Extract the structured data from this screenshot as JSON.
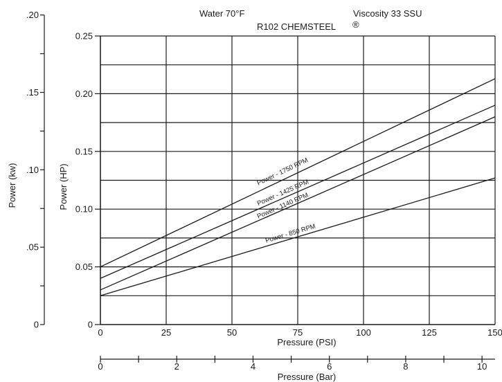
{
  "chart_data": {
    "type": "line",
    "title": "R102 CHEMSTEEL",
    "title_mark": "®",
    "header_left": "Water 70°F",
    "header_right": "Viscosity 33 SSU",
    "xlabel": "Pressure (PSI)",
    "ylabel": "Power (HP)",
    "xlim": [
      0,
      150
    ],
    "ylim": [
      0,
      0.25
    ],
    "x_ticks": [
      "0",
      "25",
      "50",
      "75",
      "100",
      "125",
      "150"
    ],
    "y_ticks": [
      "0",
      "0.05",
      "0.10",
      "0.15",
      "0.20",
      "0.25"
    ],
    "grid": true,
    "kw_axis": {
      "label": "Power (kw)",
      "ticks": [
        "0",
        ".05",
        ".10",
        ".15",
        ".20"
      ],
      "tick_values": [
        0,
        0.05,
        0.1,
        0.15,
        0.2
      ]
    },
    "bar_axis": {
      "label": "Pressure (Bar)",
      "ticks": [
        "0",
        "2",
        "4",
        "6",
        "8",
        "10"
      ],
      "tick_values": [
        0,
        2,
        4,
        6,
        8,
        10
      ]
    },
    "series": [
      {
        "name": "Power - 1750 RPM",
        "x": [
          0,
          150
        ],
        "y": [
          0.05,
          0.213
        ]
      },
      {
        "name": "Power - 1425 RPM",
        "x": [
          0,
          150
        ],
        "y": [
          0.04,
          0.19
        ]
      },
      {
        "name": "Power - 1140 RPM",
        "x": [
          0,
          150
        ],
        "y": [
          0.03,
          0.18
        ]
      },
      {
        "name": "Power - 850 RPM",
        "x": [
          0,
          150
        ],
        "y": [
          0.025,
          0.127
        ]
      }
    ]
  }
}
